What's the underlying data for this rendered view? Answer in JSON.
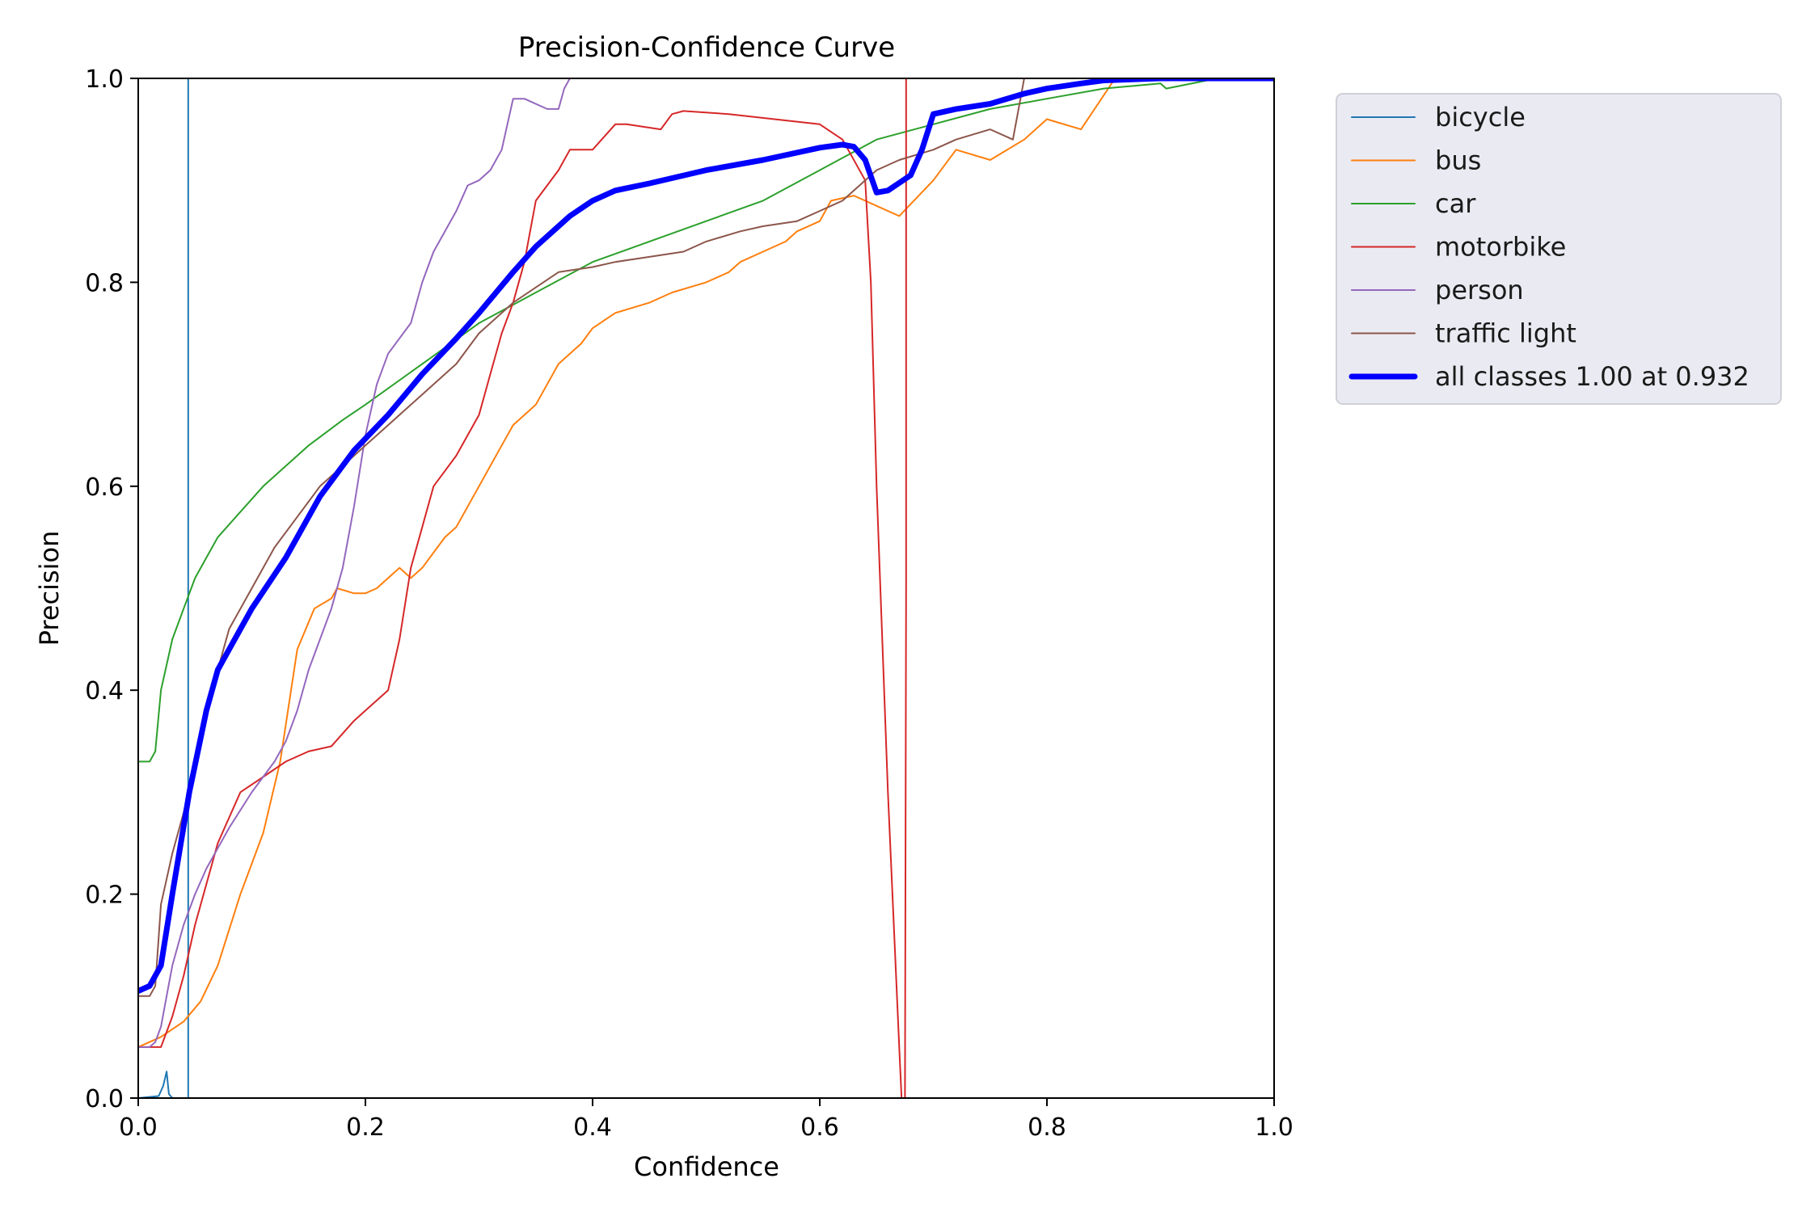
{
  "chart_data": {
    "type": "line",
    "title": "Precision-Confidence Curve",
    "xlabel": "Confidence",
    "ylabel": "Precision",
    "xlim": [
      0,
      1
    ],
    "ylim": [
      0,
      1
    ],
    "xticks": [
      "0.0",
      "0.2",
      "0.4",
      "0.6",
      "0.8",
      "1.0"
    ],
    "yticks": [
      "0.0",
      "0.2",
      "0.4",
      "0.6",
      "0.8",
      "1.0"
    ],
    "grid": false,
    "legend_position": "outside-right-top",
    "series": [
      {
        "name": "bicycle",
        "color": "#1f77b4",
        "width": 2,
        "x": [
          0.0,
          0.018,
          0.022,
          0.025,
          0.027,
          0.03,
          0.044,
          0.044,
          0.044,
          1.0
        ],
        "y": [
          0.0,
          0.002,
          0.012,
          0.026,
          0.004,
          0.0,
          0.0,
          0.5,
          1.0,
          1.0
        ]
      },
      {
        "name": "bus",
        "color": "#ff7f0e",
        "width": 2,
        "x": [
          0.0,
          0.02,
          0.04,
          0.055,
          0.07,
          0.09,
          0.11,
          0.125,
          0.14,
          0.155,
          0.17,
          0.175,
          0.19,
          0.2,
          0.21,
          0.22,
          0.23,
          0.24,
          0.25,
          0.27,
          0.28,
          0.3,
          0.31,
          0.32,
          0.33,
          0.35,
          0.37,
          0.39,
          0.4,
          0.42,
          0.45,
          0.47,
          0.5,
          0.52,
          0.53,
          0.55,
          0.57,
          0.58,
          0.6,
          0.61,
          0.63,
          0.65,
          0.67,
          0.7,
          0.72,
          0.75,
          0.78,
          0.8,
          0.83,
          0.86,
          1.0
        ],
        "y": [
          0.05,
          0.06,
          0.075,
          0.095,
          0.13,
          0.2,
          0.26,
          0.33,
          0.44,
          0.48,
          0.49,
          0.5,
          0.495,
          0.495,
          0.5,
          0.51,
          0.52,
          0.51,
          0.52,
          0.55,
          0.56,
          0.6,
          0.62,
          0.64,
          0.66,
          0.68,
          0.72,
          0.74,
          0.755,
          0.77,
          0.78,
          0.79,
          0.8,
          0.81,
          0.82,
          0.83,
          0.84,
          0.85,
          0.86,
          0.88,
          0.885,
          0.875,
          0.865,
          0.9,
          0.93,
          0.92,
          0.94,
          0.96,
          0.95,
          1.0,
          1.0
        ]
      },
      {
        "name": "car",
        "color": "#2ca02c",
        "width": 2,
        "x": [
          0.0,
          0.01,
          0.015,
          0.02,
          0.03,
          0.04,
          0.05,
          0.06,
          0.07,
          0.09,
          0.11,
          0.13,
          0.15,
          0.18,
          0.2,
          0.25,
          0.3,
          0.35,
          0.4,
          0.45,
          0.5,
          0.55,
          0.6,
          0.65,
          0.7,
          0.75,
          0.8,
          0.85,
          0.9,
          0.905,
          0.95,
          1.0
        ],
        "y": [
          0.33,
          0.33,
          0.34,
          0.4,
          0.45,
          0.48,
          0.51,
          0.53,
          0.55,
          0.575,
          0.6,
          0.62,
          0.64,
          0.665,
          0.68,
          0.72,
          0.76,
          0.79,
          0.82,
          0.84,
          0.86,
          0.88,
          0.91,
          0.94,
          0.955,
          0.97,
          0.98,
          0.99,
          0.995,
          0.99,
          1.0,
          1.0
        ]
      },
      {
        "name": "motorbike",
        "color": "#d62728",
        "width": 2,
        "x": [
          0.0,
          0.02,
          0.03,
          0.04,
          0.05,
          0.07,
          0.09,
          0.11,
          0.13,
          0.15,
          0.17,
          0.19,
          0.2,
          0.22,
          0.23,
          0.24,
          0.25,
          0.26,
          0.28,
          0.3,
          0.31,
          0.32,
          0.33,
          0.34,
          0.35,
          0.37,
          0.38,
          0.4,
          0.42,
          0.43,
          0.46,
          0.47,
          0.48,
          0.52,
          0.56,
          0.6,
          0.62,
          0.64,
          0.645,
          0.65,
          0.66,
          0.67,
          0.672,
          0.675,
          0.676,
          0.676,
          1.0
        ],
        "y": [
          0.05,
          0.05,
          0.08,
          0.12,
          0.17,
          0.25,
          0.3,
          0.315,
          0.33,
          0.34,
          0.345,
          0.37,
          0.38,
          0.4,
          0.45,
          0.52,
          0.56,
          0.6,
          0.63,
          0.67,
          0.71,
          0.75,
          0.78,
          0.82,
          0.88,
          0.91,
          0.93,
          0.93,
          0.955,
          0.955,
          0.95,
          0.965,
          0.968,
          0.965,
          0.96,
          0.955,
          0.94,
          0.9,
          0.8,
          0.6,
          0.3,
          0.05,
          0.0,
          0.0,
          0.5,
          1.0,
          1.0
        ]
      },
      {
        "name": "person",
        "color": "#9467bd",
        "width": 2,
        "x": [
          0.0,
          0.01,
          0.015,
          0.02,
          0.025,
          0.03,
          0.04,
          0.05,
          0.06,
          0.08,
          0.1,
          0.12,
          0.13,
          0.14,
          0.15,
          0.17,
          0.18,
          0.19,
          0.2,
          0.21,
          0.22,
          0.24,
          0.25,
          0.26,
          0.27,
          0.28,
          0.29,
          0.3,
          0.31,
          0.32,
          0.33,
          0.34,
          0.36,
          0.37,
          0.375,
          0.38
        ],
        "y": [
          0.05,
          0.05,
          0.055,
          0.07,
          0.1,
          0.13,
          0.17,
          0.2,
          0.225,
          0.265,
          0.3,
          0.33,
          0.35,
          0.38,
          0.42,
          0.48,
          0.52,
          0.58,
          0.65,
          0.7,
          0.73,
          0.76,
          0.8,
          0.83,
          0.85,
          0.87,
          0.895,
          0.9,
          0.91,
          0.93,
          0.98,
          0.98,
          0.97,
          0.97,
          0.99,
          1.0
        ]
      },
      {
        "name": "traffic light",
        "color": "#8c564b",
        "width": 2,
        "x": [
          0.0,
          0.01,
          0.015,
          0.02,
          0.03,
          0.04,
          0.05,
          0.06,
          0.07,
          0.08,
          0.1,
          0.12,
          0.14,
          0.16,
          0.18,
          0.2,
          0.22,
          0.25,
          0.28,
          0.3,
          0.33,
          0.35,
          0.37,
          0.4,
          0.42,
          0.45,
          0.48,
          0.5,
          0.53,
          0.55,
          0.58,
          0.6,
          0.62,
          0.64,
          0.65,
          0.67,
          0.7,
          0.72,
          0.75,
          0.77,
          0.775,
          0.78,
          0.8,
          0.85,
          1.0
        ],
        "y": [
          0.1,
          0.1,
          0.11,
          0.19,
          0.24,
          0.28,
          0.33,
          0.38,
          0.42,
          0.46,
          0.5,
          0.54,
          0.57,
          0.6,
          0.62,
          0.64,
          0.66,
          0.69,
          0.72,
          0.75,
          0.78,
          0.795,
          0.81,
          0.815,
          0.82,
          0.825,
          0.83,
          0.84,
          0.85,
          0.855,
          0.86,
          0.87,
          0.88,
          0.9,
          0.91,
          0.92,
          0.93,
          0.94,
          0.95,
          0.94,
          0.97,
          1.0,
          1.0,
          1.0,
          1.0
        ]
      },
      {
        "name": "all classes 1.00 at 0.932",
        "color": "#0000ff",
        "width": 7,
        "x": [
          0.0,
          0.01,
          0.02,
          0.03,
          0.045,
          0.06,
          0.07,
          0.08,
          0.1,
          0.13,
          0.16,
          0.19,
          0.22,
          0.25,
          0.28,
          0.3,
          0.33,
          0.35,
          0.38,
          0.4,
          0.42,
          0.45,
          0.5,
          0.55,
          0.6,
          0.62,
          0.63,
          0.64,
          0.65,
          0.66,
          0.68,
          0.69,
          0.7,
          0.72,
          0.75,
          0.78,
          0.8,
          0.83,
          0.85,
          0.9,
          1.0
        ],
        "y": [
          0.105,
          0.11,
          0.13,
          0.2,
          0.3,
          0.38,
          0.42,
          0.44,
          0.48,
          0.53,
          0.59,
          0.635,
          0.67,
          0.71,
          0.745,
          0.77,
          0.81,
          0.835,
          0.865,
          0.88,
          0.89,
          0.897,
          0.91,
          0.92,
          0.932,
          0.935,
          0.933,
          0.92,
          0.888,
          0.89,
          0.905,
          0.93,
          0.965,
          0.97,
          0.975,
          0.985,
          0.99,
          0.995,
          0.998,
          1.0,
          1.0
        ]
      }
    ]
  }
}
